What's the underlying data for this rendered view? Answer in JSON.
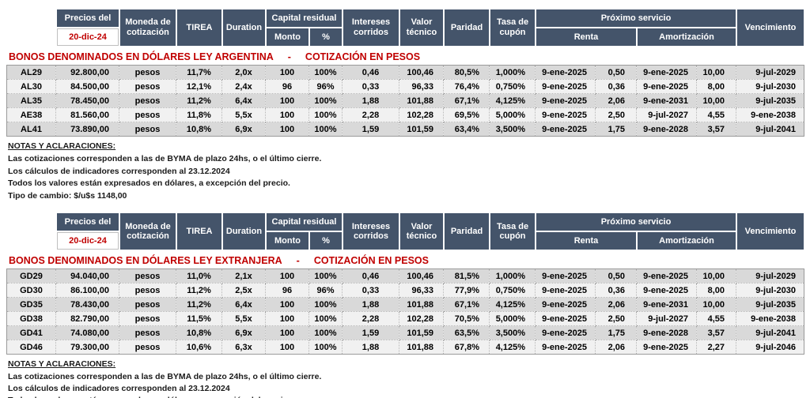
{
  "colors": {
    "header_bg": "#44546A",
    "header_text": "#ffffff",
    "accent_red": "#C00000",
    "row_odd": "#d9d9d9",
    "row_even": "#f1f1f1"
  },
  "table_header": {
    "precios_del": "Precios del",
    "price_date": "20-dic-24",
    "moneda": "Moneda de cotización",
    "tirea": "TIREA",
    "duration": "Duration",
    "capital_residual": "Capital residual",
    "monto": "Monto",
    "pct": "%",
    "intereses": "Intereses corridos",
    "valor_tecnico": "Valor técnico",
    "paridad": "Paridad",
    "tasa_cupon": "Tasa de cupón",
    "proximo_servicio": "Próximo servicio",
    "renta": "Renta",
    "amortizacion": "Amortización",
    "vencimiento": "Vencimiento"
  },
  "title_separator": "-",
  "sections": [
    {
      "title_left": "BONOS DENOMINADOS EN DÓLARES LEY ARGENTINA",
      "title_right": "COTIZACIÓN EN PESOS",
      "rows": [
        [
          "AL29",
          "92.800,00",
          "pesos",
          "11,7%",
          "2,0x",
          "100",
          "100%",
          "0,46",
          "100,46",
          "80,5%",
          "1,000%",
          "9-ene-2025",
          "0,50",
          "9-ene-2025",
          "10,00",
          "9-jul-2029"
        ],
        [
          "AL30",
          "84.500,00",
          "pesos",
          "12,1%",
          "2,4x",
          "96",
          "96%",
          "0,33",
          "96,33",
          "76,4%",
          "0,750%",
          "9-ene-2025",
          "0,36",
          "9-ene-2025",
          "8,00",
          "9-jul-2030"
        ],
        [
          "AL35",
          "78.450,00",
          "pesos",
          "11,2%",
          "6,4x",
          "100",
          "100%",
          "1,88",
          "101,88",
          "67,1%",
          "4,125%",
          "9-ene-2025",
          "2,06",
          "9-ene-2031",
          "10,00",
          "9-jul-2035"
        ],
        [
          "AE38",
          "81.560,00",
          "pesos",
          "11,8%",
          "5,5x",
          "100",
          "100%",
          "2,28",
          "102,28",
          "69,5%",
          "5,000%",
          "9-ene-2025",
          "2,50",
          "9-jul-2027",
          "4,55",
          "9-ene-2038"
        ],
        [
          "AL41",
          "73.890,00",
          "pesos",
          "10,8%",
          "6,9x",
          "100",
          "100%",
          "1,59",
          "101,59",
          "63,4%",
          "3,500%",
          "9-ene-2025",
          "1,75",
          "9-ene-2028",
          "3,57",
          "9-jul-2041"
        ]
      ]
    },
    {
      "title_left": "BONOS DENOMINADOS EN DÓLARES LEY EXTRANJERA",
      "title_right": "COTIZACIÓN EN PESOS",
      "rows": [
        [
          "GD29",
          "94.040,00",
          "pesos",
          "11,0%",
          "2,1x",
          "100",
          "100%",
          "0,46",
          "100,46",
          "81,5%",
          "1,000%",
          "9-ene-2025",
          "0,50",
          "9-ene-2025",
          "10,00",
          "9-jul-2029"
        ],
        [
          "GD30",
          "86.100,00",
          "pesos",
          "11,2%",
          "2,5x",
          "96",
          "96%",
          "0,33",
          "96,33",
          "77,9%",
          "0,750%",
          "9-ene-2025",
          "0,36",
          "9-ene-2025",
          "8,00",
          "9-jul-2030"
        ],
        [
          "GD35",
          "78.430,00",
          "pesos",
          "11,2%",
          "6,4x",
          "100",
          "100%",
          "1,88",
          "101,88",
          "67,1%",
          "4,125%",
          "9-ene-2025",
          "2,06",
          "9-ene-2031",
          "10,00",
          "9-jul-2035"
        ],
        [
          "GD38",
          "82.790,00",
          "pesos",
          "11,5%",
          "5,5x",
          "100",
          "100%",
          "2,28",
          "102,28",
          "70,5%",
          "5,000%",
          "9-ene-2025",
          "2,50",
          "9-jul-2027",
          "4,55",
          "9-ene-2038"
        ],
        [
          "GD41",
          "74.080,00",
          "pesos",
          "10,8%",
          "6,9x",
          "100",
          "100%",
          "1,59",
          "101,59",
          "63,5%",
          "3,500%",
          "9-ene-2025",
          "1,75",
          "9-ene-2028",
          "3,57",
          "9-jul-2041"
        ],
        [
          "GD46",
          "79.300,00",
          "pesos",
          "10,6%",
          "6,3x",
          "100",
          "100%",
          "1,88",
          "101,88",
          "67,8%",
          "4,125%",
          "9-ene-2025",
          "2,06",
          "9-ene-2025",
          "2,27",
          "9-jul-2046"
        ]
      ]
    }
  ],
  "notes": {
    "title": "NOTAS Y ACLARACIONES:",
    "lines": [
      "Las cotizaciones corresponden a las de BYMA de plazo 24hs, o el último cierre.",
      "Los cálculos de indicadores corresponden al 23.12.2024",
      "Todos los valores están expresados en dólares, a excepción del precio.",
      "Tipo de cambio: $/u$s 1148,00"
    ]
  }
}
